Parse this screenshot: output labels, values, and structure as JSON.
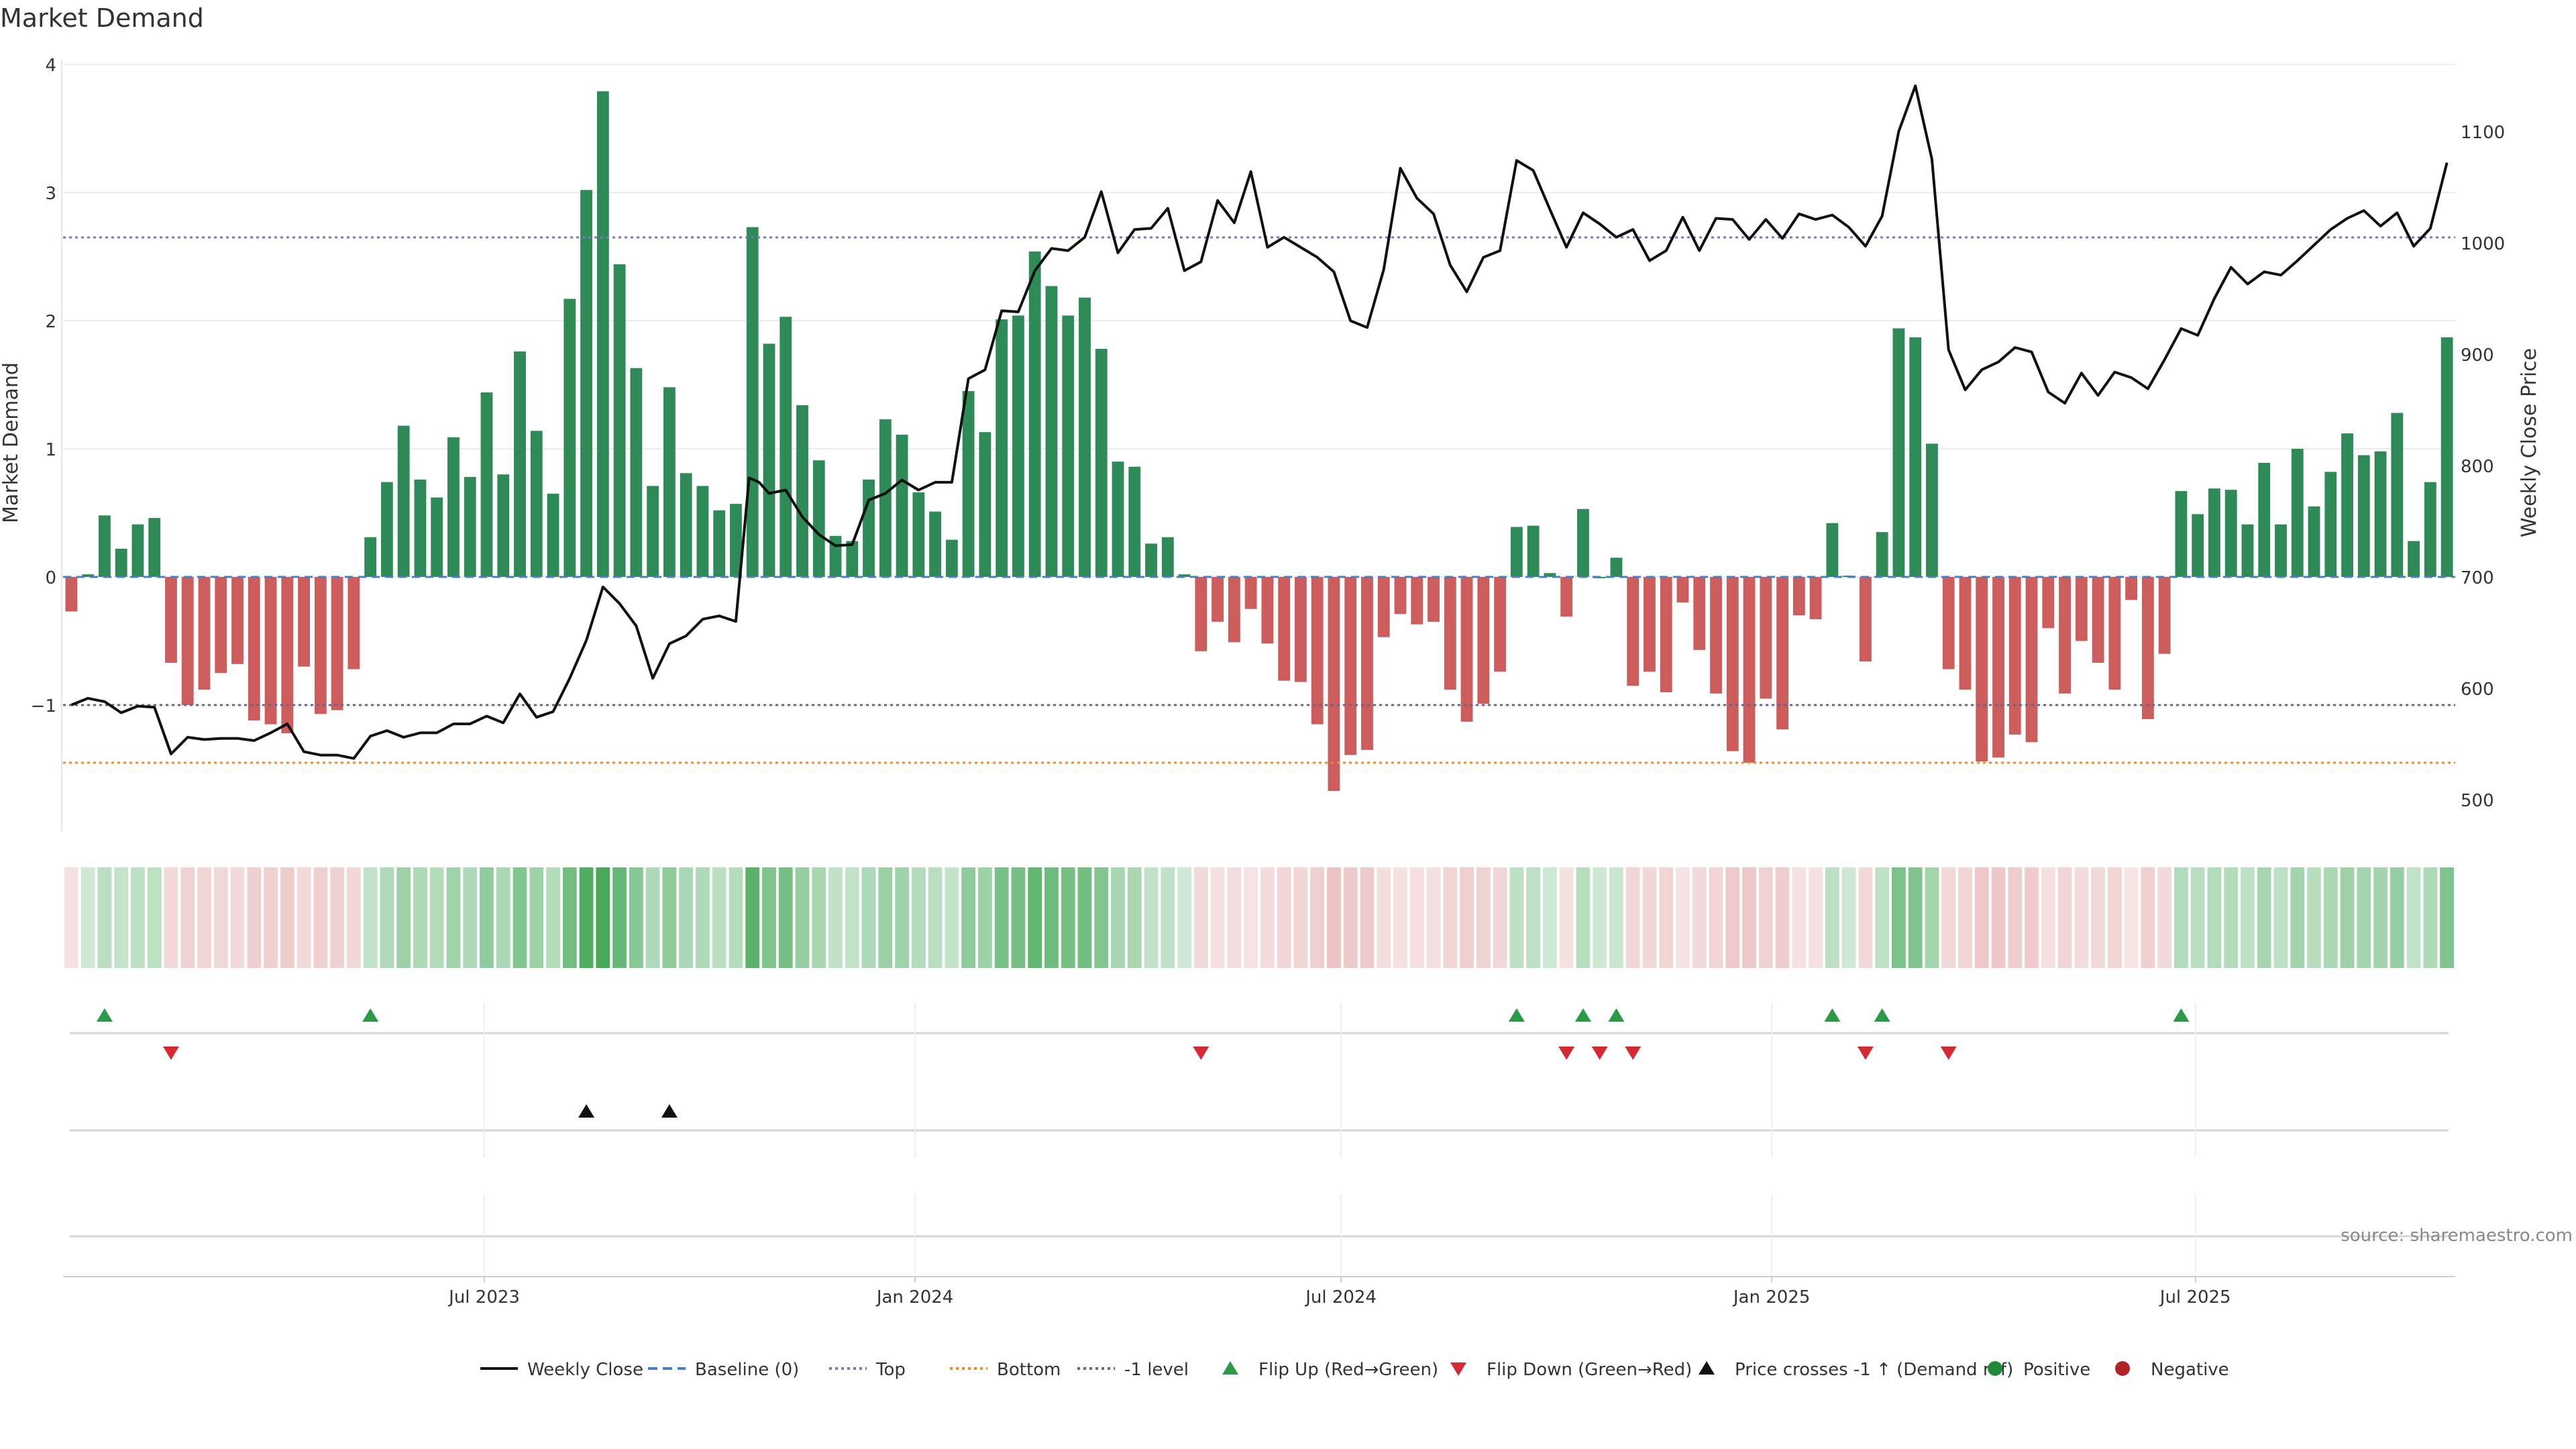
{
  "chart_data": {
    "type": "bar",
    "title": "Market Demand",
    "ylabel": "Market Demand",
    "y2label": "Weekly Close Price",
    "ylim": [
      -2.0,
      4.0
    ],
    "y2lim": [
      478,
      1168
    ],
    "yticks": [
      4,
      3,
      2,
      1,
      0,
      -1
    ],
    "ytick_labels": [
      "4",
      "3",
      "2",
      "1",
      "0",
      "−1"
    ],
    "y2ticks": [
      1100,
      1000,
      900,
      800,
      700,
      600,
      500
    ],
    "top_level": 2.65,
    "bottom_level": -1.45,
    "minus_one_level": -1.0,
    "x_range": [
      "2023-01-02",
      "2025-10-20"
    ],
    "date_ticks": [
      {
        "label": "Jul 2023",
        "date": "2023-07-01"
      },
      {
        "label": "Jan 2024",
        "date": "2024-01-01"
      },
      {
        "label": "Jul 2024",
        "date": "2024-07-01"
      },
      {
        "label": "Jan 2025",
        "date": "2025-01-01"
      },
      {
        "label": "Jul 2025",
        "date": "2025-07-01"
      }
    ],
    "demand": [
      -0.27,
      0.02,
      0.48,
      0.22,
      0.41,
      0.46,
      -0.67,
      -1.0,
      -0.88,
      -0.75,
      -0.68,
      -1.12,
      -1.15,
      -1.22,
      -0.7,
      -1.07,
      -1.04,
      -0.72,
      0.31,
      0.74,
      1.18,
      0.76,
      0.62,
      1.09,
      0.78,
      1.44,
      0.8,
      1.76,
      1.14,
      0.65,
      2.17,
      3.02,
      3.79,
      2.44,
      1.63,
      0.71,
      1.48,
      0.81,
      0.71,
      0.52,
      0.57,
      2.73,
      1.82,
      2.03,
      1.34,
      0.91,
      0.32,
      0.28,
      0.76,
      1.23,
      1.11,
      0.66,
      0.51,
      0.29,
      1.45,
      1.13,
      2.01,
      2.04,
      2.54,
      2.27,
      2.04,
      2.18,
      1.78,
      0.9,
      0.86,
      0.26,
      0.31,
      0.02,
      -0.58,
      -0.35,
      -0.51,
      -0.25,
      -0.52,
      -0.81,
      -0.82,
      -1.15,
      -1.67,
      -1.39,
      -1.35,
      -0.47,
      -0.29,
      -0.37,
      -0.35,
      -0.88,
      -1.13,
      -0.99,
      -0.74,
      0.39,
      0.4,
      0.03,
      -0.31,
      0.53,
      0.0,
      0.15,
      -0.85,
      -0.74,
      -0.9,
      -0.2,
      -0.57,
      -0.91,
      -1.36,
      -1.45,
      -0.95,
      -1.19,
      -0.3,
      -0.33,
      0.42,
      0.01,
      -0.66,
      0.35,
      1.94,
      1.87,
      1.04,
      -0.72,
      -0.88,
      -1.44,
      -1.41,
      -1.23,
      -1.29,
      -0.4,
      -0.91,
      -0.5,
      -0.67,
      -0.88,
      -0.18,
      -1.11,
      -0.6,
      0.67,
      0.49,
      0.69,
      0.68,
      0.41,
      0.89,
      0.41,
      1.0,
      0.55,
      0.82,
      1.12,
      0.95,
      0.98,
      1.28,
      0.28,
      0.74,
      1.87
    ],
    "weekly_close": [
      {
        "x": 0,
        "y": 585
      },
      {
        "x": 1,
        "y": 591
      },
      {
        "x": 2,
        "y": 588
      },
      {
        "x": 3,
        "y": 578
      },
      {
        "x": 4,
        "y": 584
      },
      {
        "x": 5,
        "y": 583
      },
      {
        "x": 6,
        "y": 541
      },
      {
        "x": 7,
        "y": 556
      },
      {
        "x": 8,
        "y": 554
      },
      {
        "x": 9,
        "y": 555
      },
      {
        "x": 10,
        "y": 555
      },
      {
        "x": 11,
        "y": 553
      },
      {
        "x": 12,
        "y": 560
      },
      {
        "x": 13,
        "y": 568
      },
      {
        "x": 14,
        "y": 543
      },
      {
        "x": 15,
        "y": 540
      },
      {
        "x": 16,
        "y": 540
      },
      {
        "x": 17,
        "y": 537
      },
      {
        "x": 18,
        "y": 557
      },
      {
        "x": 19,
        "y": 562
      },
      {
        "x": 20,
        "y": 556
      },
      {
        "x": 21,
        "y": 560
      },
      {
        "x": 22,
        "y": 560
      },
      {
        "x": 23,
        "y": 568
      },
      {
        "x": 24,
        "y": 568
      },
      {
        "x": 25,
        "y": 575
      },
      {
        "x": 26,
        "y": 569
      },
      {
        "x": 27,
        "y": 595
      },
      {
        "x": 28,
        "y": 574
      },
      {
        "x": 29,
        "y": 579
      },
      {
        "x": 30,
        "y": 609
      },
      {
        "x": 31,
        "y": 643
      },
      {
        "x": 32,
        "y": 691
      },
      {
        "x": 33,
        "y": 676
      },
      {
        "x": 34,
        "y": 656
      },
      {
        "x": 35,
        "y": 609
      },
      {
        "x": 36,
        "y": 640
      },
      {
        "x": 37,
        "y": 647
      },
      {
        "x": 38,
        "y": 662
      },
      {
        "x": 39,
        "y": 665
      },
      {
        "x": 40,
        "y": 660
      },
      {
        "x": 40.8,
        "y": 789
      },
      {
        "x": 41.4,
        "y": 785
      },
      {
        "x": 42,
        "y": 775
      },
      {
        "x": 43,
        "y": 778
      },
      {
        "x": 44,
        "y": 754
      },
      {
        "x": 45,
        "y": 738
      },
      {
        "x": 46,
        "y": 728
      },
      {
        "x": 47,
        "y": 729
      },
      {
        "x": 48,
        "y": 769
      },
      {
        "x": 49,
        "y": 775
      },
      {
        "x": 50,
        "y": 787
      },
      {
        "x": 51,
        "y": 778
      },
      {
        "x": 52,
        "y": 785
      },
      {
        "x": 53,
        "y": 785
      },
      {
        "x": 54,
        "y": 878
      },
      {
        "x": 55,
        "y": 886
      },
      {
        "x": 56,
        "y": 939
      },
      {
        "x": 57,
        "y": 938
      },
      {
        "x": 58,
        "y": 975
      },
      {
        "x": 59,
        "y": 995
      },
      {
        "x": 60,
        "y": 993
      },
      {
        "x": 61,
        "y": 1005
      },
      {
        "x": 62,
        "y": 1046
      },
      {
        "x": 63,
        "y": 991
      },
      {
        "x": 64,
        "y": 1012
      },
      {
        "x": 65,
        "y": 1013
      },
      {
        "x": 66,
        "y": 1031
      },
      {
        "x": 67,
        "y": 975
      },
      {
        "x": 68,
        "y": 983
      },
      {
        "x": 69,
        "y": 1038
      },
      {
        "x": 70,
        "y": 1018
      },
      {
        "x": 71,
        "y": 1064
      },
      {
        "x": 72,
        "y": 996
      },
      {
        "x": 73,
        "y": 1005
      },
      {
        "x": 74,
        "y": 996
      },
      {
        "x": 75,
        "y": 987
      },
      {
        "x": 76,
        "y": 974
      },
      {
        "x": 77,
        "y": 930
      },
      {
        "x": 78,
        "y": 924
      },
      {
        "x": 79,
        "y": 976
      },
      {
        "x": 80,
        "y": 1067
      },
      {
        "x": 81,
        "y": 1040
      },
      {
        "x": 82,
        "y": 1026
      },
      {
        "x": 83,
        "y": 980
      },
      {
        "x": 84,
        "y": 956
      },
      {
        "x": 85,
        "y": 987
      },
      {
        "x": 86,
        "y": 993
      },
      {
        "x": 87,
        "y": 1074
      },
      {
        "x": 88,
        "y": 1065
      },
      {
        "x": 89,
        "y": 1030
      },
      {
        "x": 90,
        "y": 996
      },
      {
        "x": 91,
        "y": 1027
      },
      {
        "x": 92,
        "y": 1017
      },
      {
        "x": 93,
        "y": 1005
      },
      {
        "x": 94,
        "y": 1012
      },
      {
        "x": 95,
        "y": 984
      },
      {
        "x": 96,
        "y": 993
      },
      {
        "x": 97,
        "y": 1023
      },
      {
        "x": 98,
        "y": 993
      },
      {
        "x": 99,
        "y": 1022
      },
      {
        "x": 100,
        "y": 1021
      },
      {
        "x": 101,
        "y": 1003
      },
      {
        "x": 102,
        "y": 1021
      },
      {
        "x": 103,
        "y": 1004
      },
      {
        "x": 104,
        "y": 1026
      },
      {
        "x": 105,
        "y": 1021
      },
      {
        "x": 106,
        "y": 1025
      },
      {
        "x": 107,
        "y": 1014
      },
      {
        "x": 108,
        "y": 997
      },
      {
        "x": 109,
        "y": 1024
      },
      {
        "x": 110,
        "y": 1100
      },
      {
        "x": 111,
        "y": 1141
      },
      {
        "x": 112,
        "y": 1075
      },
      {
        "x": 113,
        "y": 904
      },
      {
        "x": 114,
        "y": 868
      },
      {
        "x": 115,
        "y": 886
      },
      {
        "x": 116,
        "y": 893
      },
      {
        "x": 117,
        "y": 906
      },
      {
        "x": 118,
        "y": 902
      },
      {
        "x": 119,
        "y": 866
      },
      {
        "x": 120,
        "y": 856
      },
      {
        "x": 121,
        "y": 883
      },
      {
        "x": 122,
        "y": 863
      },
      {
        "x": 123,
        "y": 884
      },
      {
        "x": 124,
        "y": 879
      },
      {
        "x": 125,
        "y": 869
      },
      {
        "x": 126,
        "y": 895
      },
      {
        "x": 127,
        "y": 923
      },
      {
        "x": 128,
        "y": 917
      },
      {
        "x": 129,
        "y": 950
      },
      {
        "x": 130,
        "y": 978
      },
      {
        "x": 131,
        "y": 963
      },
      {
        "x": 132,
        "y": 974
      },
      {
        "x": 133,
        "y": 971
      },
      {
        "x": 134,
        "y": 984
      },
      {
        "x": 135,
        "y": 998
      },
      {
        "x": 136,
        "y": 1012
      },
      {
        "x": 137,
        "y": 1022
      },
      {
        "x": 138,
        "y": 1029
      },
      {
        "x": 139,
        "y": 1015
      },
      {
        "x": 140,
        "y": 1027
      },
      {
        "x": 141,
        "y": 997
      },
      {
        "x": 142,
        "y": 1013
      },
      {
        "x": 143,
        "y": 1072
      }
    ],
    "flip_up_weeks": [
      2,
      18,
      87,
      91,
      93,
      106,
      109,
      127
    ],
    "flip_down_weeks": [
      6,
      68,
      90,
      92,
      94,
      108,
      113
    ],
    "price_cross_weeks": [
      31,
      36
    ],
    "heat_strip": "weekly demand shading (green positive, red negative)",
    "legend": {
      "position": "bottom-center",
      "entries": [
        {
          "label": "Weekly Close",
          "kind": "line",
          "color": "#111111"
        },
        {
          "label": "Baseline (0)",
          "kind": "dashed",
          "color": "#4a7fc1"
        },
        {
          "label": "Top",
          "kind": "dotted",
          "color": "#7777bb"
        },
        {
          "label": "Bottom",
          "kind": "dotted",
          "color": "#f08a24"
        },
        {
          "label": "-1 level",
          "kind": "dotted",
          "color": "#666688"
        },
        {
          "label": "Flip Up (Red→Green)",
          "kind": "tri-up",
          "color": "#2a9a46"
        },
        {
          "label": "Flip Down (Green→Red)",
          "kind": "tri-down",
          "color": "#d62a32"
        },
        {
          "label": "Price crosses -1 ↑ (Demand ref)",
          "kind": "tri-up",
          "color": "#111111"
        },
        {
          "label": "Positive",
          "kind": "dot",
          "color": "#1f8a3a"
        },
        {
          "label": "Negative",
          "kind": "dot",
          "color": "#b22222"
        }
      ]
    },
    "source": "source: sharemaestro.com",
    "colors": {
      "positive_bar": "#2e8b57",
      "negative_bar": "#cd5c5c",
      "price_line": "#111111"
    }
  }
}
